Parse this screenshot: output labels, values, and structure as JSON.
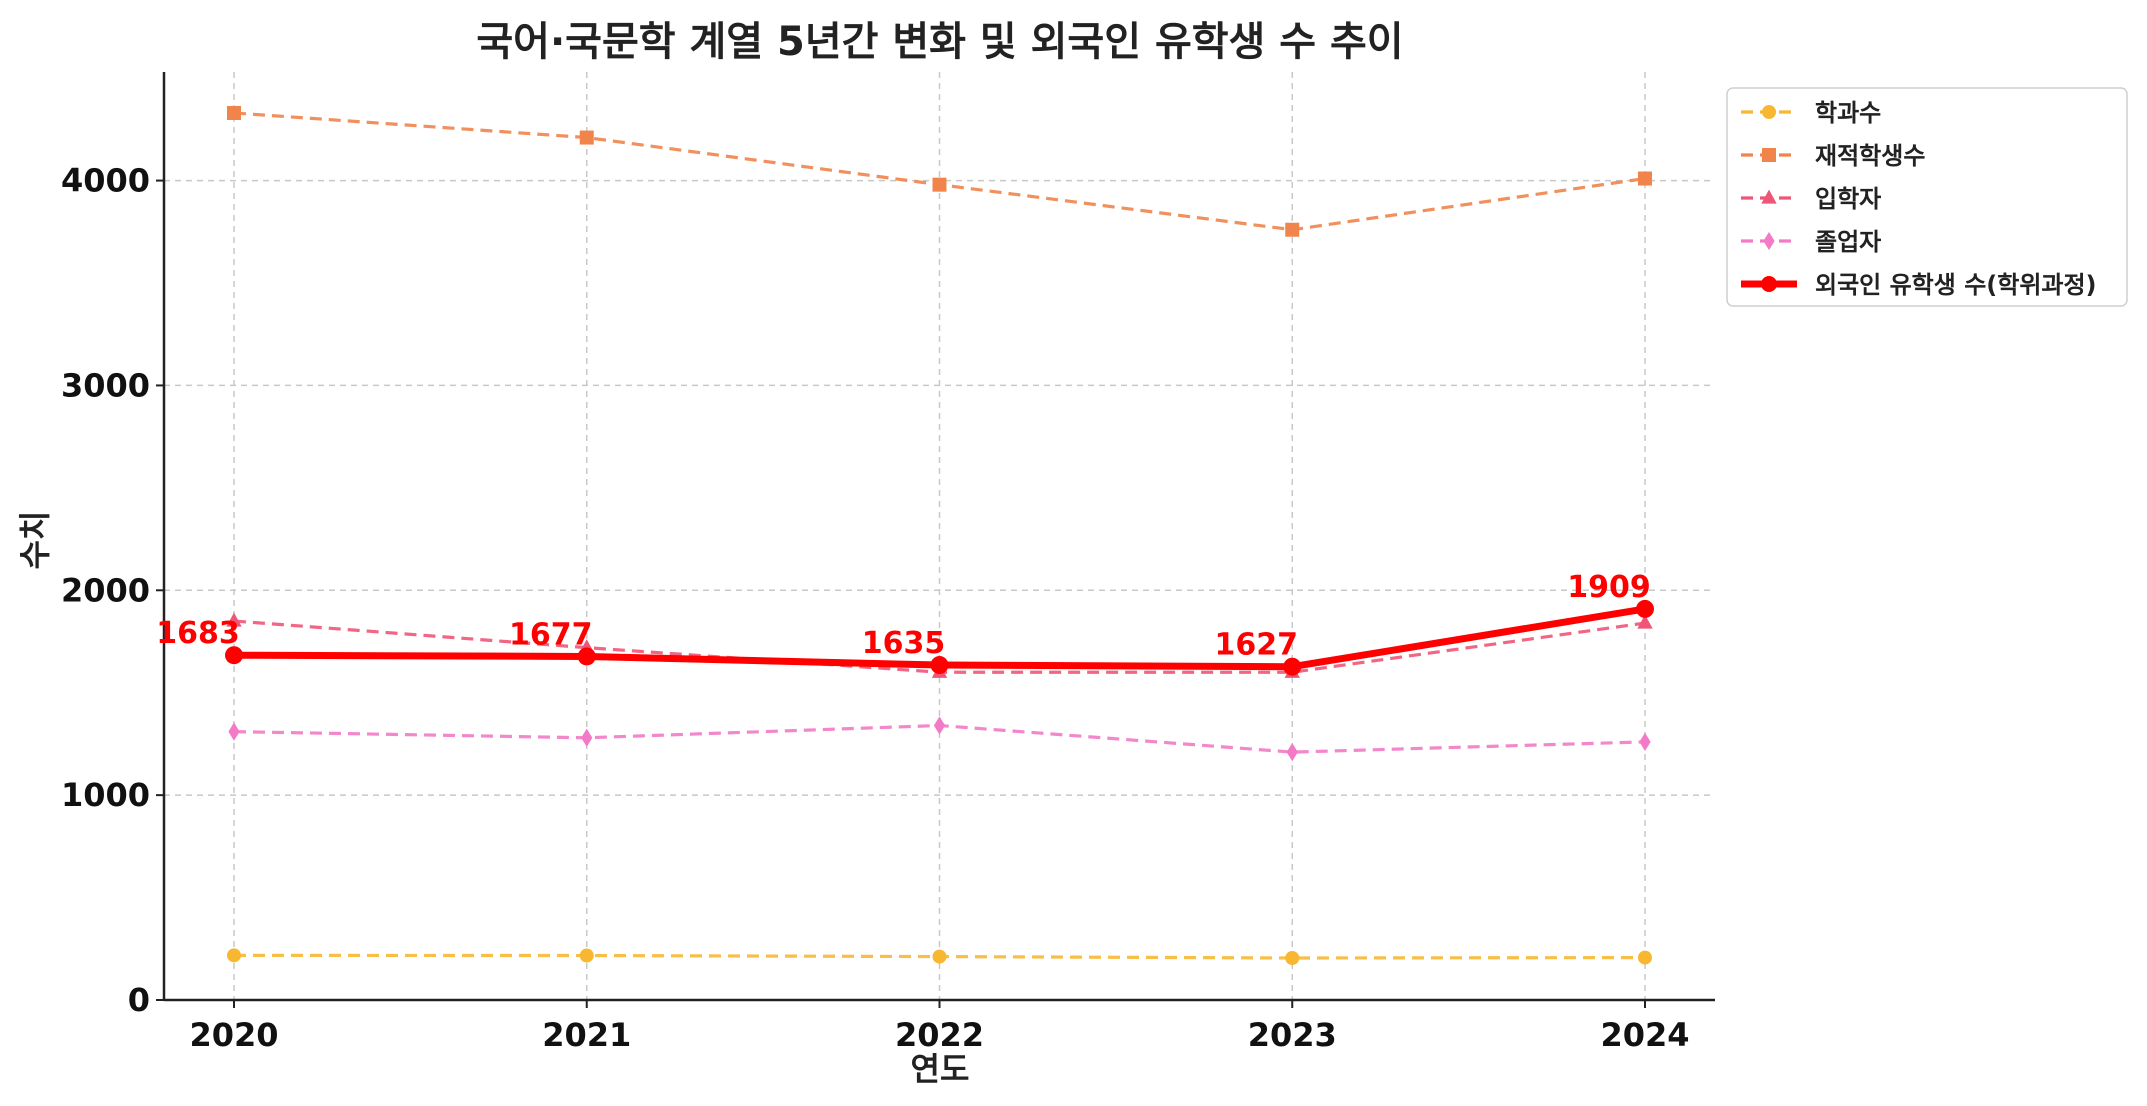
{
  "chart_data": {
    "type": "line",
    "title": "국어·국문학 계열 5년간 변화 및 외국인 유학생 수 추이",
    "xlabel": "연도",
    "ylabel": "수치",
    "categories": [
      "2020",
      "2021",
      "2022",
      "2023",
      "2024"
    ],
    "ylim": [
      0,
      4530
    ],
    "yticks": [
      0,
      1000,
      2000,
      3000,
      4000
    ],
    "grid": true,
    "legend_position": "outside-top-right",
    "series": [
      {
        "name": "학과수",
        "values": [
          218,
          217,
          212,
          205,
          207
        ],
        "color": "#f7b731",
        "marker": "circle",
        "style": "dashed"
      },
      {
        "name": "재적학생수",
        "values": [
          4330,
          4210,
          3980,
          3760,
          4010
        ],
        "color": "#f0844a",
        "marker": "square",
        "style": "dashed"
      },
      {
        "name": "입학자",
        "values": [
          1850,
          1720,
          1600,
          1600,
          1840
        ],
        "color": "#ee5577",
        "marker": "triangle",
        "style": "dashed"
      },
      {
        "name": "졸업자",
        "values": [
          1310,
          1280,
          1340,
          1210,
          1260
        ],
        "color": "#f27ac6",
        "marker": "diamond",
        "style": "dashed"
      },
      {
        "name": "외국인 유학생 수(학위과정)",
        "values": [
          1683,
          1677,
          1635,
          1627,
          1909
        ],
        "color": "#ff0000",
        "marker": "circle",
        "style": "solid",
        "data_labels": [
          "1683",
          "1677",
          "1635",
          "1627",
          "1909"
        ]
      }
    ]
  }
}
